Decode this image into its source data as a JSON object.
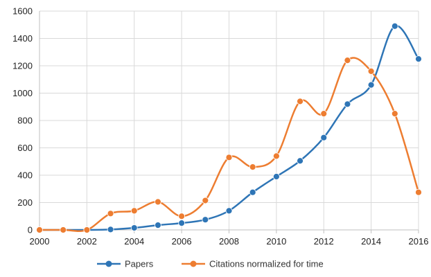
{
  "chart_data": {
    "type": "line",
    "smooth": true,
    "x": [
      2000,
      2001,
      2002,
      2003,
      2004,
      2005,
      2006,
      2007,
      2008,
      2009,
      2010,
      2011,
      2012,
      2013,
      2014,
      2015,
      2016
    ],
    "xticks": [
      2000,
      2002,
      2004,
      2006,
      2008,
      2010,
      2012,
      2014,
      2016
    ],
    "xlim": [
      2000,
      2016
    ],
    "ylim": [
      0,
      1600
    ],
    "yticks": [
      0,
      200,
      400,
      600,
      800,
      1000,
      1200,
      1400,
      1600
    ],
    "grid": true,
    "legend_position": "bottom",
    "title": "",
    "xlabel": "",
    "ylabel": "",
    "series": [
      {
        "name": "Papers",
        "color": "#2e75b6",
        "values": [
          0,
          0,
          0,
          3,
          15,
          35,
          50,
          75,
          140,
          275,
          390,
          505,
          675,
          920,
          1060,
          1490,
          1250
        ]
      },
      {
        "name": "Citations normalized for time",
        "color": "#ed7d31",
        "values": [
          0,
          0,
          0,
          120,
          140,
          205,
          100,
          215,
          530,
          460,
          540,
          940,
          850,
          1240,
          1160,
          850,
          275
        ]
      }
    ]
  }
}
